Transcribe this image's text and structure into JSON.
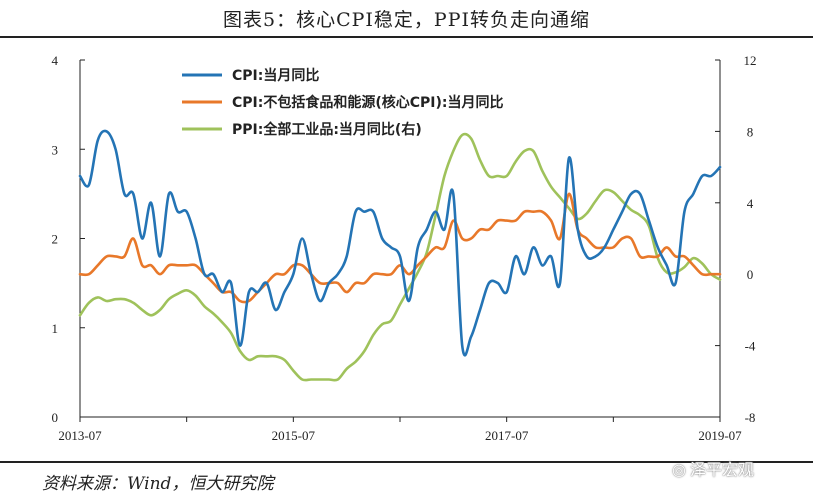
{
  "title": "图表5：核心CPI稳定，PPI转负走向通缩",
  "source": "资料来源：Wind，恒大研究院",
  "watermark": "泽平宏观",
  "colors": {
    "cpi": "#2474b5",
    "core": "#e8782a",
    "ppi": "#9fc25b",
    "axis": "#222222"
  },
  "chart_data": {
    "type": "line",
    "title": "图表5：核心CPI稳定，PPI转负走向通缩",
    "x_ticks": [
      "2013-07",
      "2015-07",
      "2017-07",
      "2019-07"
    ],
    "x": [
      "2013-07",
      "2013-08",
      "2013-09",
      "2013-10",
      "2013-11",
      "2013-12",
      "2014-01",
      "2014-02",
      "2014-03",
      "2014-04",
      "2014-05",
      "2014-06",
      "2014-07",
      "2014-08",
      "2014-09",
      "2014-10",
      "2014-11",
      "2014-12",
      "2015-01",
      "2015-02",
      "2015-03",
      "2015-04",
      "2015-05",
      "2015-06",
      "2015-07",
      "2015-08",
      "2015-09",
      "2015-10",
      "2015-11",
      "2015-12",
      "2016-01",
      "2016-02",
      "2016-03",
      "2016-04",
      "2016-05",
      "2016-06",
      "2016-07",
      "2016-08",
      "2016-09",
      "2016-10",
      "2016-11",
      "2016-12",
      "2017-01",
      "2017-02",
      "2017-03",
      "2017-04",
      "2017-05",
      "2017-06",
      "2017-07",
      "2017-08",
      "2017-09",
      "2017-10",
      "2017-11",
      "2017-12",
      "2018-01",
      "2018-02",
      "2018-03",
      "2018-04",
      "2018-05",
      "2018-06",
      "2018-07",
      "2018-08",
      "2018-09",
      "2018-10",
      "2018-11",
      "2018-12",
      "2019-01",
      "2019-02",
      "2019-03",
      "2019-04",
      "2019-05",
      "2019-06",
      "2019-07"
    ],
    "left_axis": {
      "min": 0,
      "max": 4,
      "ticks": [
        0,
        1,
        2,
        3,
        4
      ]
    },
    "right_axis": {
      "min": -8,
      "max": 12,
      "ticks": [
        -8,
        -4,
        0,
        4,
        8,
        12
      ]
    },
    "legend_position": "top-left",
    "series": [
      {
        "name": "CPI:当月同比",
        "axis": "left",
        "color": "#2474b5",
        "values": [
          2.7,
          2.6,
          3.1,
          3.2,
          3.0,
          2.5,
          2.5,
          2.0,
          2.4,
          1.8,
          2.5,
          2.3,
          2.3,
          2.0,
          1.6,
          1.6,
          1.4,
          1.5,
          0.8,
          1.4,
          1.4,
          1.5,
          1.2,
          1.4,
          1.6,
          2.0,
          1.6,
          1.3,
          1.5,
          1.6,
          1.8,
          2.3,
          2.3,
          2.3,
          2.0,
          1.9,
          1.8,
          1.3,
          1.9,
          2.1,
          2.3,
          2.1,
          2.5,
          0.8,
          0.9,
          1.2,
          1.5,
          1.5,
          1.4,
          1.8,
          1.6,
          1.9,
          1.7,
          1.8,
          1.5,
          2.9,
          2.1,
          1.8,
          1.8,
          1.9,
          2.1,
          2.3,
          2.5,
          2.5,
          2.2,
          1.9,
          1.7,
          1.5,
          2.3,
          2.5,
          2.7,
          2.7,
          2.8
        ]
      },
      {
        "name": "CPI:不包括食品和能源(核心CPI):当月同比",
        "axis": "left",
        "color": "#e8782a",
        "values": [
          1.6,
          1.6,
          1.7,
          1.8,
          1.8,
          1.8,
          2.0,
          1.7,
          1.7,
          1.6,
          1.7,
          1.7,
          1.7,
          1.7,
          1.6,
          1.5,
          1.4,
          1.4,
          1.3,
          1.3,
          1.4,
          1.5,
          1.6,
          1.6,
          1.7,
          1.7,
          1.6,
          1.5,
          1.5,
          1.5,
          1.4,
          1.5,
          1.5,
          1.6,
          1.6,
          1.6,
          1.7,
          1.6,
          1.7,
          1.8,
          1.9,
          1.9,
          2.2,
          2.0,
          2.0,
          2.1,
          2.1,
          2.2,
          2.2,
          2.2,
          2.3,
          2.3,
          2.3,
          2.2,
          2.0,
          2.5,
          2.1,
          2.0,
          1.9,
          1.9,
          1.9,
          2.0,
          2.0,
          1.8,
          1.8,
          1.8,
          1.9,
          1.8,
          1.8,
          1.7,
          1.6,
          1.6,
          1.6
        ]
      },
      {
        "name": "PPI:全部工业品:当月同比(右)",
        "axis": "right",
        "color": "#9fc25b",
        "values": [
          -2.3,
          -1.6,
          -1.3,
          -1.5,
          -1.4,
          -1.4,
          -1.6,
          -2.0,
          -2.3,
          -2.0,
          -1.4,
          -1.1,
          -0.9,
          -1.2,
          -1.8,
          -2.2,
          -2.7,
          -3.3,
          -4.3,
          -4.8,
          -4.6,
          -4.6,
          -4.6,
          -4.8,
          -5.4,
          -5.9,
          -5.9,
          -5.9,
          -5.9,
          -5.9,
          -5.3,
          -4.9,
          -4.3,
          -3.4,
          -2.8,
          -2.6,
          -1.7,
          -0.8,
          0.1,
          1.2,
          3.3,
          5.5,
          6.9,
          7.8,
          7.6,
          6.4,
          5.5,
          5.5,
          5.5,
          6.3,
          6.9,
          6.9,
          5.8,
          4.9,
          4.3,
          3.7,
          3.1,
          3.4,
          4.1,
          4.7,
          4.6,
          4.1,
          3.6,
          3.3,
          2.7,
          0.9,
          0.1,
          0.1,
          0.4,
          0.9,
          0.6,
          0.0,
          -0.3
        ]
      }
    ]
  }
}
